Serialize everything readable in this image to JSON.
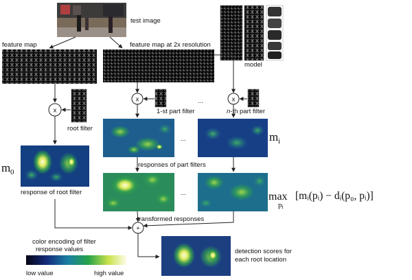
{
  "labels": {
    "test_image": "test image",
    "feature_map": "feature map",
    "feature_map_2x": "feature map at 2x resolution",
    "model": "model",
    "root_filter": "root filter",
    "part_filter_1": "1-st part filter",
    "part_filter_n_prefix": "n",
    "part_filter_n_suffix": "-th part filter",
    "responses_part_filters": "responses of part filters",
    "response_root_filter": "response of root filter",
    "transformed_responses": "transformed responses",
    "color_encoding_line1": "color encoding of filter",
    "color_encoding_line2": "response values",
    "low_value": "low value",
    "high_value": "high value",
    "detection_line1": "detection scores for",
    "detection_line2": "each root location",
    "ellipsis": "...",
    "op_multiply": "x",
    "op_add": "+"
  },
  "math": {
    "m0_base": "m",
    "m0_sub": "0",
    "mi_base": "m",
    "mi_sub": "i",
    "max": "max",
    "max_sub": "p",
    "max_sub2": "i",
    "formula": "[mᵢ(pᵢ) − dᵢ(p₀, pᵢ)]"
  },
  "colors": {
    "arrow": "#222222",
    "heat_low": "#0b0b3a",
    "heat_mid": "#1c6e8c",
    "heat_green": "#2ea84a",
    "heat_high": "#f6f2b8"
  }
}
